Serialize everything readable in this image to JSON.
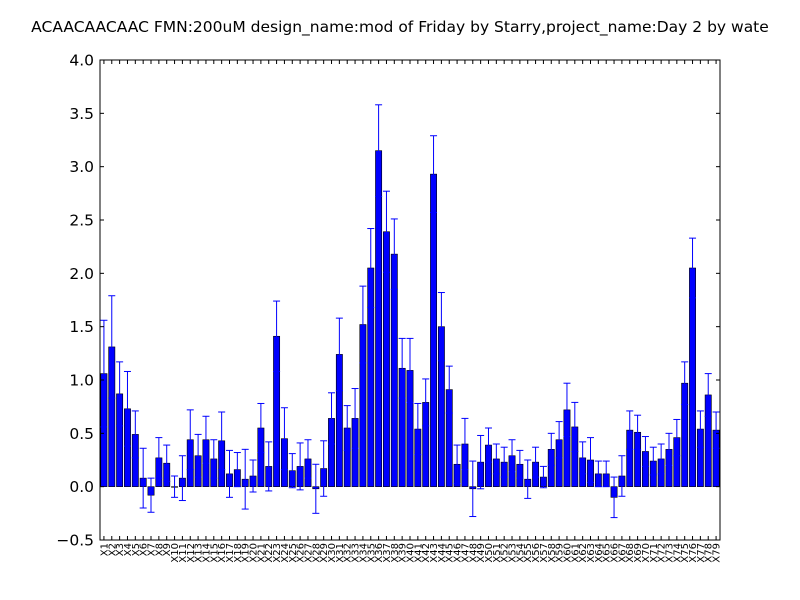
{
  "colors": {
    "bar": "#0000ff",
    "bar_edge": "#000000",
    "error_bar": "#0000ff",
    "axes": "#000000",
    "background": "#ffffff"
  },
  "chart_data": {
    "type": "bar",
    "title": "ACAACAACAAC  FMN:200uM  design_name:mod of Friday by Starry,project_name:Day 2 by wate",
    "xlabel": "",
    "ylabel": "",
    "ylim": [
      -0.5,
      4.0
    ],
    "yticks": [
      "−0.5",
      "0.0",
      "0.5",
      "1.0",
      "1.5",
      "2.0",
      "2.5",
      "3.0",
      "3.5",
      "4.0"
    ],
    "grid": false,
    "legend": "none",
    "categories": [
      "X1",
      "X2",
      "X3",
      "X4",
      "X5",
      "X6",
      "X7",
      "X8",
      "X9",
      "X10",
      "X11",
      "X12",
      "X13",
      "X14",
      "X15",
      "X16",
      "X17",
      "X18",
      "X19",
      "X20",
      "X21",
      "X22",
      "X23",
      "X24",
      "X25",
      "X26",
      "X27",
      "X28",
      "X29",
      "X30",
      "X31",
      "X32",
      "X33",
      "X34",
      "X35",
      "X36",
      "X37",
      "X38",
      "X39",
      "X40",
      "X41",
      "X42",
      "X43",
      "X44",
      "X45",
      "X46",
      "X47",
      "X48",
      "X49",
      "X50",
      "X51",
      "X52",
      "X53",
      "X54",
      "X55",
      "X56",
      "X57",
      "X58",
      "X59",
      "X60",
      "X61",
      "X62",
      "X63",
      "X64",
      "X65",
      "X66",
      "X67",
      "X68",
      "X69",
      "X70",
      "X71",
      "X72",
      "X73",
      "X74",
      "X75",
      "X76",
      "X77",
      "X78",
      "X79"
    ],
    "values": [
      1.06,
      1.31,
      0.87,
      0.73,
      0.49,
      0.08,
      -0.08,
      0.27,
      0.22,
      0.0,
      0.08,
      0.44,
      0.29,
      0.44,
      0.26,
      0.43,
      0.12,
      0.16,
      0.07,
      0.1,
      0.55,
      0.19,
      1.41,
      0.45,
      0.15,
      0.19,
      0.26,
      -0.02,
      0.17,
      0.64,
      1.24,
      0.55,
      0.64,
      1.52,
      2.05,
      3.15,
      2.39,
      2.18,
      1.11,
      1.09,
      0.54,
      0.79,
      2.93,
      1.5,
      0.91,
      0.21,
      0.4,
      -0.02,
      0.23,
      0.39,
      0.26,
      0.23,
      0.29,
      0.21,
      0.07,
      0.23,
      0.09,
      0.35,
      0.44,
      0.72,
      0.56,
      0.27,
      0.25,
      0.12,
      0.12,
      -0.1,
      0.1,
      0.53,
      0.51,
      0.33,
      0.24,
      0.26,
      0.35,
      0.46,
      0.97,
      2.05,
      0.54,
      0.86,
      0.53
    ],
    "errors": [
      0.5,
      0.48,
      0.3,
      0.35,
      0.22,
      0.28,
      0.16,
      0.19,
      0.17,
      0.1,
      0.21,
      0.28,
      0.2,
      0.22,
      0.18,
      0.27,
      0.22,
      0.16,
      0.28,
      0.15,
      0.23,
      0.23,
      0.33,
      0.29,
      0.16,
      0.22,
      0.18,
      0.23,
      0.26,
      0.24,
      0.34,
      0.21,
      0.28,
      0.36,
      0.37,
      0.43,
      0.38,
      0.33,
      0.28,
      0.3,
      0.24,
      0.22,
      0.36,
      0.32,
      0.22,
      0.18,
      0.24,
      0.26,
      0.25,
      0.16,
      0.14,
      0.14,
      0.15,
      0.13,
      0.18,
      0.14,
      0.1,
      0.15,
      0.17,
      0.25,
      0.23,
      0.15,
      0.21,
      0.12,
      0.12,
      0.19,
      0.19,
      0.18,
      0.16,
      0.14,
      0.13,
      0.14,
      0.15,
      0.17,
      0.2,
      0.28,
      0.17,
      0.2,
      0.17
    ]
  }
}
